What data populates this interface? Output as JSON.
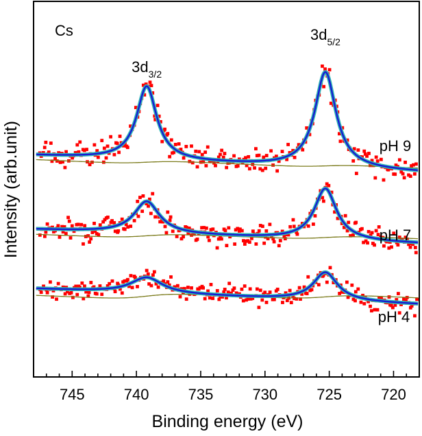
{
  "chart_data": {
    "type": "scatter",
    "title": "",
    "panel_label": "Cs",
    "xlabel": "Binding energy (eV)",
    "ylabel": "Intensity (arb.unit)",
    "xlim": [
      748,
      718
    ],
    "ylim": [
      0,
      1
    ],
    "x_reversed": true,
    "grid": false,
    "x_ticks": [
      745,
      740,
      735,
      730,
      725,
      720
    ],
    "x_tick_labels": [
      "745",
      "740",
      "735",
      "730",
      "725",
      "720"
    ],
    "y_ticks_shown": false,
    "peaks": [
      {
        "main": "3d",
        "sub": "3/2",
        "position": 739.2
      },
      {
        "main": "3d",
        "sub": "5/2",
        "position": 725.3
      }
    ],
    "series": [
      {
        "name": "pH 9",
        "baseline_start": 0.59,
        "baseline_end": 0.545,
        "background_steps": [
          0.012,
          0.01
        ],
        "peak_heights": [
          0.196,
          0.255
        ],
        "peak_widths": [
          0.95,
          1.0
        ],
        "noise": 0.022,
        "seed": 9
      },
      {
        "name": "pH 7",
        "baseline_start": 0.393,
        "baseline_end": 0.355,
        "background_steps": [
          0.014,
          0.012
        ],
        "peak_heights": [
          0.085,
          0.137
        ],
        "peak_widths": [
          1.2,
          1.05
        ],
        "noise": 0.018,
        "seed": 7
      },
      {
        "name": "pH 4",
        "baseline_start": 0.235,
        "baseline_end": 0.193,
        "background_steps": [
          0.02,
          0.015
        ],
        "peak_heights": [
          0.042,
          0.075
        ],
        "peak_widths": [
          1.5,
          1.15
        ],
        "noise": 0.016,
        "seed": 4
      }
    ],
    "colors": {
      "points": "#ff0000",
      "fit": "#1919d2",
      "envelope": "#2fb5b5",
      "background": "#7a7a1a",
      "axis": "#000000"
    }
  }
}
